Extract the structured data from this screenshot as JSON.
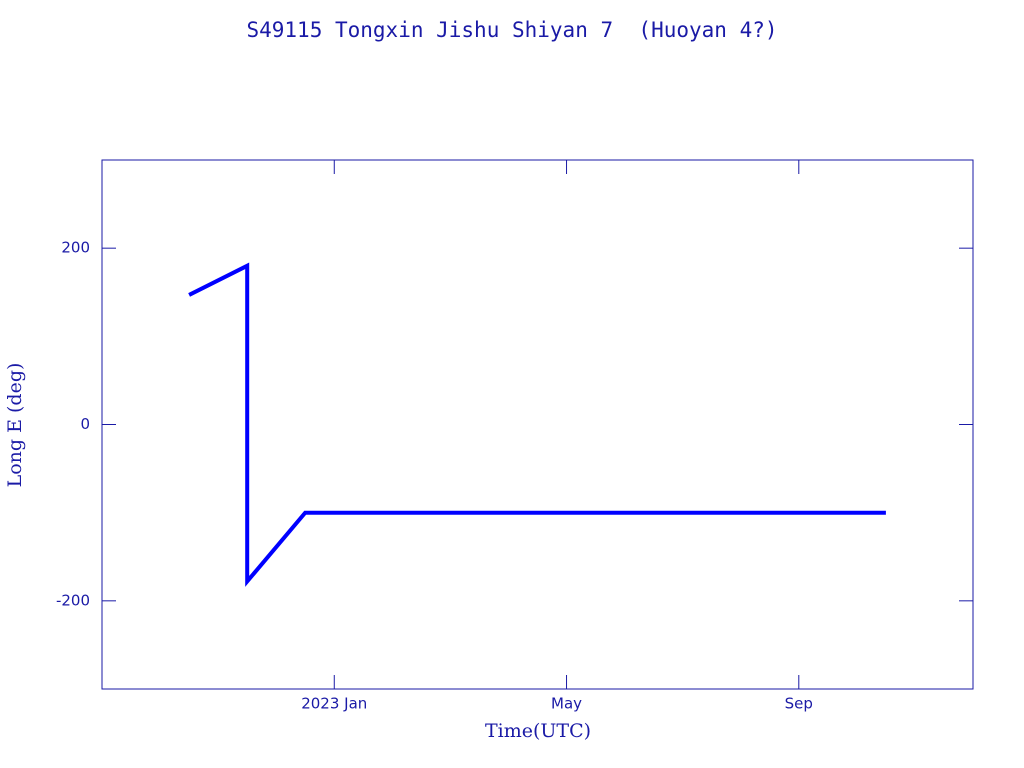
{
  "chart_data": {
    "type": "line",
    "title": "S49115 Tongxin Jishu Shiyan 7  (Huoyan 4?)",
    "x_label": "Time(UTC)",
    "y_label": "Long E (deg)",
    "x": [
      "2022-10",
      "2022-11",
      "2022-11",
      "2022-12",
      "2023-10"
    ],
    "series": [
      {
        "color": "#0000ff",
        "values": [
          147,
          180,
          -178,
          -100,
          -100
        ]
      }
    ],
    "xlim": [
      "2022-09",
      "2023-12"
    ],
    "xticks": [
      {
        "value": "2023-01",
        "label": "2023 Jan"
      },
      {
        "value": "2023-05",
        "label": "May"
      },
      {
        "value": "2023-09",
        "label": "Sep"
      }
    ],
    "ylim": [
      -300,
      300
    ],
    "yticks": [
      -200,
      0,
      200
    ],
    "grid": false,
    "axis_color": "#1a1aa6"
  }
}
